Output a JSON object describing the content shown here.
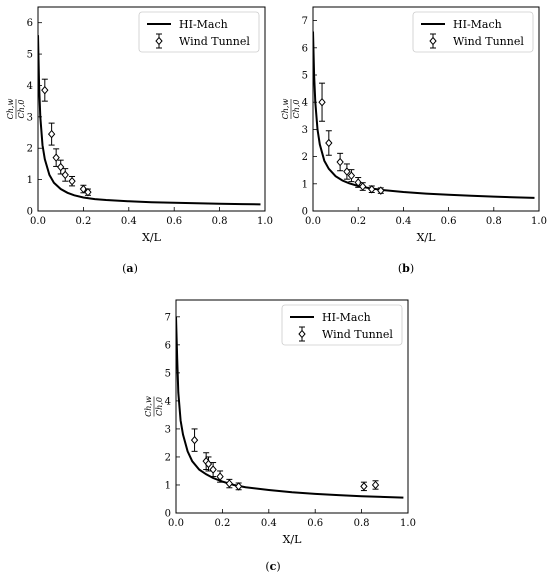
{
  "chart_data": [
    {
      "id": "a",
      "type": "line",
      "caption_letter": "a",
      "xlabel": "X/L",
      "ylabel_num": "Ch,w",
      "ylabel_den": "Ch,0",
      "xlim": [
        0,
        1.0
      ],
      "ylim": [
        0,
        6.5
      ],
      "xticks": [
        "0.0",
        "0.2",
        "0.4",
        "0.6",
        "0.8",
        "1.0"
      ],
      "yticks": [
        "0",
        "1",
        "2",
        "3",
        "4",
        "5",
        "6"
      ],
      "legend_position": "top-right",
      "series": [
        {
          "name": "HI-Mach",
          "style": "line",
          "x": [
            0.0,
            0.005,
            0.01,
            0.02,
            0.03,
            0.05,
            0.07,
            0.1,
            0.13,
            0.16,
            0.2,
            0.25,
            0.3,
            0.4,
            0.5,
            0.6,
            0.7,
            0.8,
            0.9,
            0.98
          ],
          "y": [
            5.6,
            4.0,
            3.0,
            2.1,
            1.65,
            1.15,
            0.9,
            0.7,
            0.58,
            0.5,
            0.43,
            0.38,
            0.35,
            0.31,
            0.28,
            0.26,
            0.245,
            0.23,
            0.22,
            0.21
          ]
        },
        {
          "name": "Wind Tunnel",
          "style": "errorbar",
          "x": [
            0.03,
            0.06,
            0.08,
            0.1,
            0.12,
            0.15,
            0.2,
            0.22
          ],
          "y": [
            3.85,
            2.45,
            1.7,
            1.4,
            1.15,
            0.95,
            0.7,
            0.6
          ],
          "err": [
            0.35,
            0.35,
            0.28,
            0.22,
            0.2,
            0.15,
            0.12,
            0.1
          ]
        }
      ]
    },
    {
      "id": "b",
      "type": "line",
      "caption_letter": "b",
      "xlabel": "X/L",
      "ylabel_num": "Ch,w",
      "ylabel_den": "Ch,0",
      "xlim": [
        0,
        1.0
      ],
      "ylim": [
        0,
        7.5
      ],
      "xticks": [
        "0.0",
        "0.2",
        "0.4",
        "0.6",
        "0.8",
        "1.0"
      ],
      "yticks": [
        "0",
        "1",
        "2",
        "3",
        "4",
        "5",
        "6",
        "7"
      ],
      "legend_position": "top-right",
      "series": [
        {
          "name": "HI-Mach",
          "style": "line",
          "x": [
            0.0,
            0.005,
            0.01,
            0.02,
            0.03,
            0.05,
            0.07,
            0.1,
            0.13,
            0.16,
            0.2,
            0.25,
            0.3,
            0.4,
            0.5,
            0.6,
            0.7,
            0.8,
            0.9,
            0.98
          ],
          "y": [
            6.6,
            5.0,
            4.0,
            3.0,
            2.45,
            1.85,
            1.55,
            1.28,
            1.12,
            1.02,
            0.92,
            0.84,
            0.78,
            0.7,
            0.64,
            0.6,
            0.56,
            0.53,
            0.5,
            0.48
          ]
        },
        {
          "name": "Wind Tunnel",
          "style": "errorbar",
          "x": [
            0.04,
            0.07,
            0.12,
            0.15,
            0.17,
            0.2,
            0.22,
            0.26,
            0.3
          ],
          "y": [
            4.0,
            2.5,
            1.8,
            1.45,
            1.3,
            1.05,
            0.9,
            0.8,
            0.75
          ],
          "err": [
            0.7,
            0.45,
            0.32,
            0.28,
            0.22,
            0.18,
            0.14,
            0.12,
            0.1
          ]
        }
      ]
    },
    {
      "id": "c",
      "type": "line",
      "caption_letter": "c",
      "xlabel": "X/L",
      "ylabel_num": "Ch,w",
      "ylabel_den": "Ch,0",
      "xlim": [
        0,
        1.0
      ],
      "ylim": [
        0,
        7.6
      ],
      "xticks": [
        "0.0",
        "0.2",
        "0.4",
        "0.6",
        "0.8",
        "1.0"
      ],
      "yticks": [
        "0",
        "1",
        "2",
        "3",
        "4",
        "5",
        "6",
        "7"
      ],
      "legend_position": "top-right",
      "series": [
        {
          "name": "HI-Mach",
          "style": "line",
          "x": [
            0.0,
            0.005,
            0.01,
            0.02,
            0.03,
            0.05,
            0.07,
            0.1,
            0.13,
            0.16,
            0.2,
            0.25,
            0.3,
            0.4,
            0.5,
            0.6,
            0.7,
            0.8,
            0.9,
            0.98
          ],
          "y": [
            7.0,
            5.5,
            4.3,
            3.3,
            2.8,
            2.2,
            1.85,
            1.55,
            1.38,
            1.25,
            1.12,
            1.0,
            0.92,
            0.82,
            0.74,
            0.68,
            0.64,
            0.6,
            0.57,
            0.55
          ]
        },
        {
          "name": "Wind Tunnel",
          "style": "errorbar",
          "x": [
            0.08,
            0.13,
            0.14,
            0.16,
            0.19,
            0.23,
            0.27,
            0.81,
            0.86
          ],
          "y": [
            2.6,
            1.85,
            1.75,
            1.55,
            1.3,
            1.05,
            0.95,
            0.95,
            1.0
          ],
          "err": [
            0.4,
            0.3,
            0.25,
            0.25,
            0.2,
            0.15,
            0.12,
            0.15,
            0.15
          ]
        }
      ]
    }
  ]
}
